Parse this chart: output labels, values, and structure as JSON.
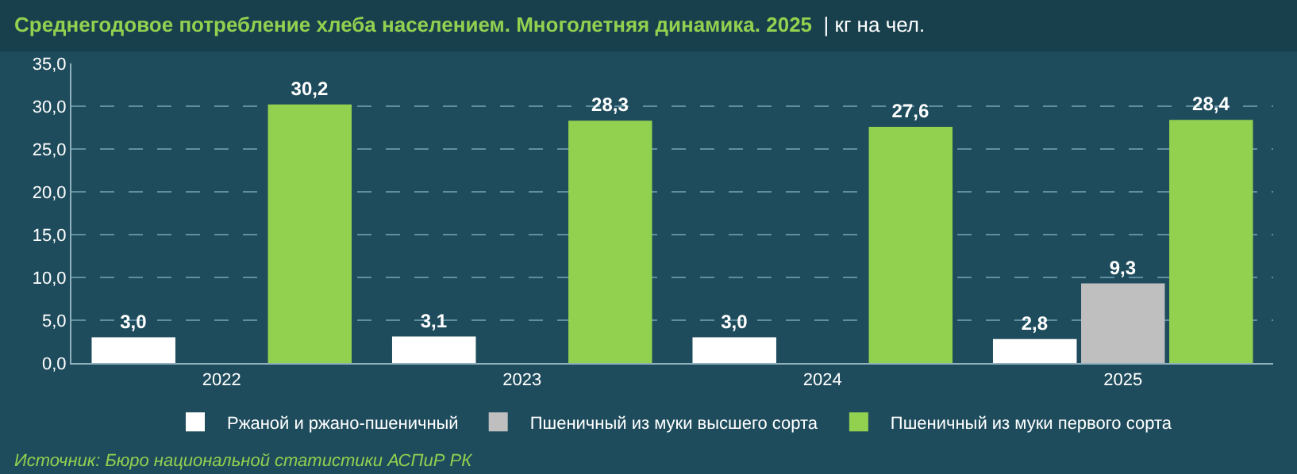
{
  "chart_data": {
    "type": "bar",
    "title": "Среднегодовое потребление хлеба населением. Многолетняя динамика. 2025",
    "subtitle": "| кг на чел.",
    "categories": [
      "2022",
      "2023",
      "2024",
      "2025"
    ],
    "series": [
      {
        "name": "Ржаной и ржано-пшеничный",
        "color": "#ffffff",
        "values": [
          3.0,
          3.1,
          3.0,
          2.8
        ],
        "value_labels": [
          "3,0",
          "3,1",
          "3,0",
          "2,8"
        ]
      },
      {
        "name": "Пшеничный из муки высшего сорта",
        "color": "#bfbfbf",
        "values": [
          null,
          null,
          null,
          9.3
        ],
        "value_labels": [
          null,
          null,
          null,
          "9,3"
        ]
      },
      {
        "name": "Пшеничный из муки первого сорта",
        "color": "#92d050",
        "values": [
          30.2,
          28.3,
          27.6,
          28.4
        ],
        "value_labels": [
          "30,2",
          "28,3",
          "27,6",
          "28,4"
        ]
      }
    ],
    "ylim": [
      0,
      35
    ],
    "yticks": [
      {
        "value": 0,
        "label": "0,0"
      },
      {
        "value": 5,
        "label": "5,0"
      },
      {
        "value": 10,
        "label": "10,0"
      },
      {
        "value": 15,
        "label": "15,0"
      },
      {
        "value": 20,
        "label": "20,0"
      },
      {
        "value": 25,
        "label": "25,0"
      },
      {
        "value": 30,
        "label": "30,0"
      },
      {
        "value": 35,
        "label": "35,0"
      }
    ],
    "grid": "y",
    "legend": "bottom",
    "annotations": [
      "Источник: Бюро национальной статистики АСПиР РК"
    ]
  }
}
